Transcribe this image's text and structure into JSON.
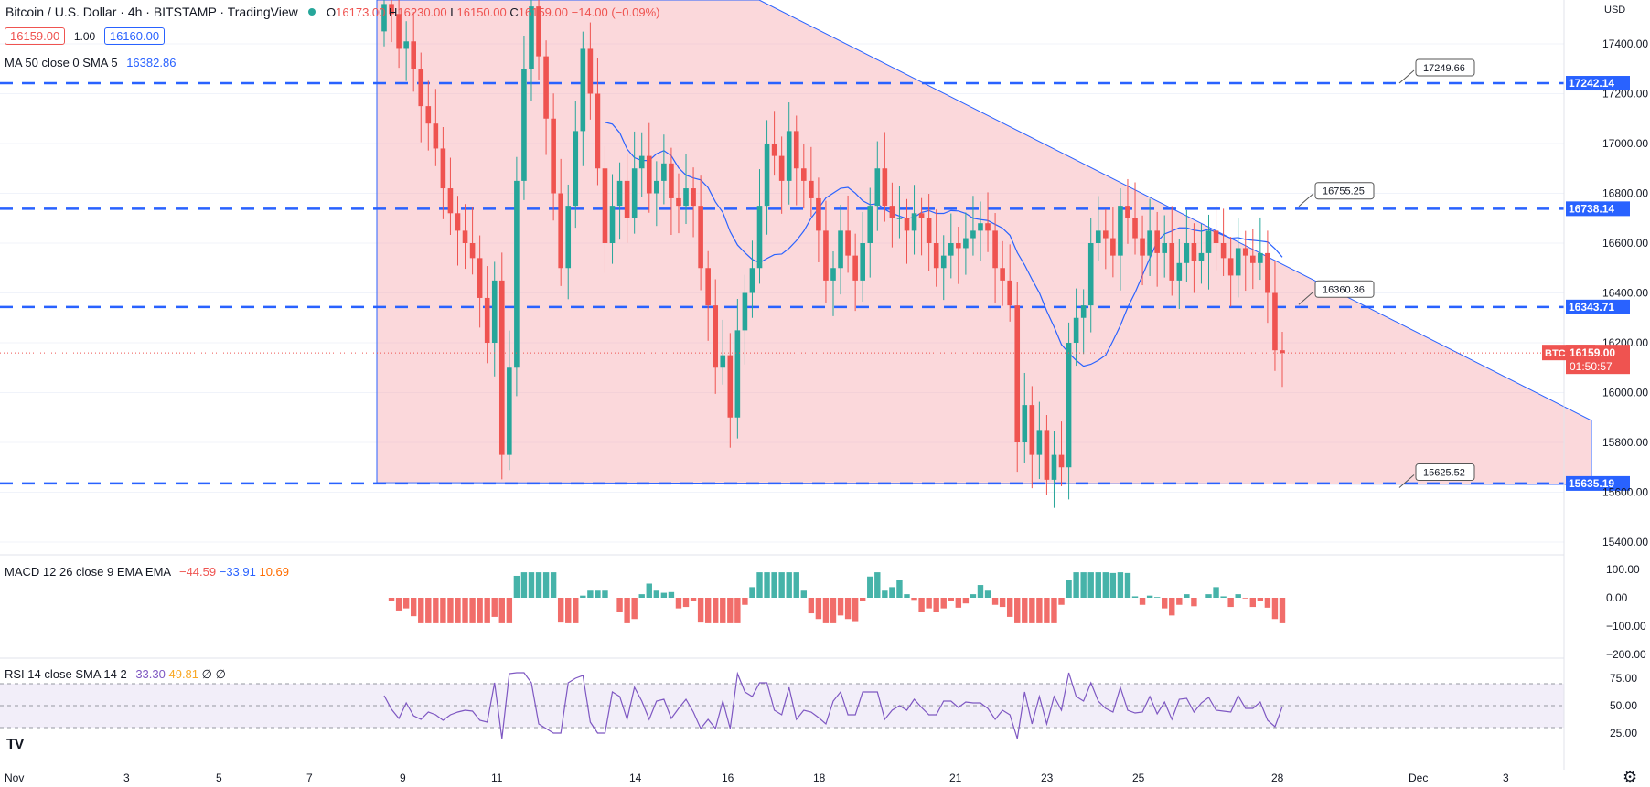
{
  "symbol": {
    "title": "Bitcoin / U.S. Dollar · 4h · BITSTAMP · TradingView",
    "ohlc": {
      "o_label": "O",
      "o": "16173.00",
      "h_label": "H",
      "h": "16230.00",
      "l_label": "L",
      "l": "16150.00",
      "c_label": "C",
      "c": "16159.00",
      "change": "−14.00 (−0.09%)"
    },
    "sell_price": "16159.00",
    "spread": "1.00",
    "buy_price": "16160.00"
  },
  "ma_legend": {
    "label": "MA 50 close 0 SMA 5",
    "value": "16382.86"
  },
  "macd_legend": {
    "label": "MACD 12 26 close 9 EMA EMA",
    "hist": "−44.59",
    "macd": "−33.91",
    "signal": "10.69"
  },
  "rsi_legend": {
    "label": "RSI 14 close SMA 14 2",
    "rsi": "33.30",
    "sma": "49.81",
    "v3": "∅",
    "v4": "∅"
  },
  "price_axis": {
    "currency": "USD",
    "ticks": [
      "17400.00",
      "17200.00",
      "17000.00",
      "16800.00",
      "16600.00",
      "16400.00",
      "16200.00",
      "16000.00",
      "15800.00",
      "15600.00",
      "15400.00"
    ],
    "tick_values": [
      17400,
      17200,
      17000,
      16800,
      16600,
      16400,
      16200,
      16000,
      15800,
      15600,
      15400
    ],
    "level_badges": [
      "17242.14",
      "16738.14",
      "16343.71",
      "15635.19"
    ],
    "level_values": [
      17242.14,
      16738.14,
      16343.71,
      15635.19
    ],
    "last_symbol": "BTCUSD",
    "last_price": "16159.00",
    "countdown": "01:50:57"
  },
  "callouts": [
    {
      "text": "17249.66",
      "value": 17249.66
    },
    {
      "text": "16755.25",
      "value": 16755.25
    },
    {
      "text": "16360.36",
      "value": 16360.36
    },
    {
      "text": "15625.52",
      "value": 15625.52
    }
  ],
  "macd_axis": {
    "ticks": [
      "100.00",
      "0.00",
      "−100.00",
      "−200.00"
    ],
    "values": [
      100,
      0,
      -100,
      -200
    ]
  },
  "rsi_axis": {
    "ticks": [
      "75.00",
      "50.00",
      "25.00"
    ],
    "values": [
      75,
      50,
      25
    ]
  },
  "time_axis": {
    "labels": [
      "Nov",
      "3",
      "5",
      "7",
      "9",
      "11",
      "14",
      "16",
      "18",
      "21",
      "23",
      "25",
      "28",
      "Dec",
      "3"
    ]
  },
  "logo": "TV",
  "icons": {
    "settings": "gear-icon",
    "visibility": "eye-icon"
  },
  "colors": {
    "up": "#26a69a",
    "down": "#ef5350",
    "level": "#2962ff",
    "ma": "#2962ff",
    "signal": "#ff6d00",
    "rsi": "#7e57c2",
    "rsi_sma": "#fdd835",
    "pattern_fill": "#f7a9b0"
  },
  "chart_data": {
    "type": "candlestick",
    "timeframe": "4h",
    "dates": "Nov 1 – Nov 28",
    "y_range": [
      15400,
      17500
    ],
    "levels": [
      17242.14,
      16738.14,
      16343.71,
      15635.19
    ],
    "close": [
      17560,
      17520,
      17380,
      17410,
      17300,
      17150,
      17080,
      16980,
      16820,
      16720,
      16650,
      16600,
      16540,
      16380,
      16200,
      16450,
      15750,
      16100,
      16850,
      17300,
      17550,
      17350,
      17100,
      16800,
      16500,
      16750,
      17050,
      17380,
      17200,
      16900,
      16600,
      16750,
      16850,
      16700,
      16900,
      16950,
      16800,
      16850,
      16920,
      16780,
      16750,
      16820,
      16750,
      16500,
      16350,
      16100,
      16150,
      15900,
      16250,
      16400,
      16500,
      16750,
      17000,
      16950,
      16850,
      17050,
      16900,
      16850,
      16780,
      16650,
      16450,
      16500,
      16650,
      16550,
      16450,
      16600,
      16750,
      16900,
      16750,
      16700,
      16700,
      16650,
      16720,
      16700,
      16600,
      16500,
      16550,
      16600,
      16580,
      16620,
      16650,
      16680,
      16650,
      16500,
      16450,
      16350,
      15800,
      15950,
      15750,
      15850,
      15650,
      15750,
      15700,
      16200,
      16300,
      16350,
      16600,
      16650,
      16620,
      16550,
      16750,
      16700,
      16620,
      16550,
      16650,
      16560,
      16600,
      16450,
      16520,
      16600,
      16530,
      16560,
      16650,
      16600,
      16540,
      16470,
      16580,
      16550,
      16520,
      16560,
      16400,
      16170,
      16159
    ]
  }
}
